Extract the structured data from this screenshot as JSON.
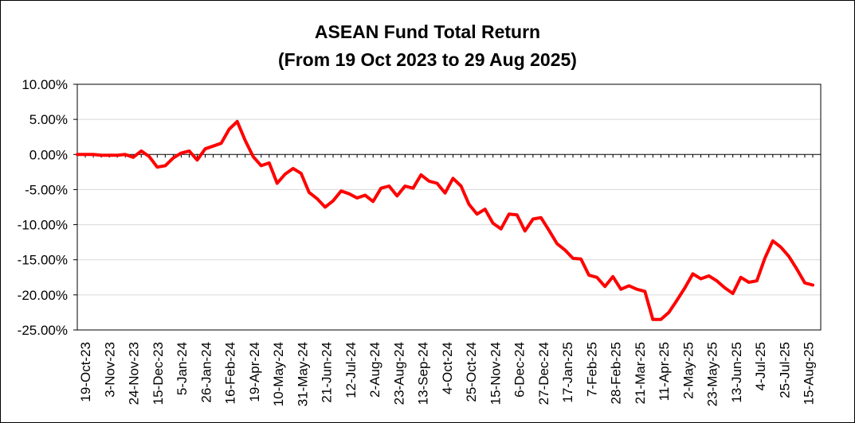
{
  "chart_data": {
    "type": "line",
    "title": "ASEAN Fund Total Return",
    "subtitle": "(From 19 Oct 2023 to 29 Aug 2025)",
    "xlabel": "",
    "ylabel": "",
    "ylim": [
      -25,
      10
    ],
    "y_ticks": [
      10,
      5,
      0,
      -5,
      -10,
      -15,
      -20,
      -25
    ],
    "y_tick_labels": [
      "10.00%",
      "5.00%",
      "0.00%",
      "-5.00%",
      "-10.00%",
      "-15.00%",
      "-20.00%",
      "-25.00%"
    ],
    "x_tick_labels": [
      "19-Oct-23",
      "3-Nov-23",
      "24-Nov-23",
      "15-Dec-23",
      "5-Jan-24",
      "26-Jan-24",
      "16-Feb-24",
      "19-Apr-24",
      "10-May-24",
      "31-May-24",
      "21-Jun-24",
      "12-Jul-24",
      "2-Aug-24",
      "23-Aug-24",
      "13-Sep-24",
      "4-Oct-24",
      "25-Oct-24",
      "15-Nov-24",
      "6-Dec-24",
      "27-Dec-24",
      "17-Jan-25",
      "7-Feb-25",
      "28-Feb-25",
      "21-Mar-25",
      "11-Apr-25",
      "2-May-25",
      "23-May-25",
      "13-Jun-25",
      "4-Jul-25",
      "25-Jul-25",
      "15-Aug-25"
    ],
    "grid": true,
    "line_color": "#ff0000",
    "series": [
      {
        "values": [
          0.0,
          0.0,
          0.0,
          -0.1,
          -0.1,
          -0.1,
          0.0,
          -0.4,
          0.5,
          -0.3,
          -1.8,
          -1.6,
          -0.5,
          0.2,
          0.5,
          -0.8,
          0.8,
          1.2,
          1.6,
          3.6,
          4.7,
          2.0,
          -0.3,
          -1.6,
          -1.2,
          -4.1,
          -2.8,
          -2.0,
          -2.7,
          -5.4,
          -6.3,
          -7.5,
          -6.6,
          -5.2,
          -5.6,
          -6.2,
          -5.8,
          -6.7,
          -4.8,
          -4.5,
          -5.9,
          -4.5,
          -4.8,
          -2.9,
          -3.8,
          -4.1,
          -5.5,
          -3.4,
          -4.5,
          -7.1,
          -8.5,
          -7.8,
          -9.8,
          -10.6,
          -8.5,
          -8.6,
          -10.9,
          -9.2,
          -9.0,
          -10.8,
          -12.7,
          -13.6,
          -14.8,
          -14.9,
          -17.2,
          -17.5,
          -18.8,
          -17.4,
          -19.2,
          -18.7,
          -19.2,
          -19.5,
          -23.5,
          -23.5,
          -22.5,
          -20.8,
          -19.0,
          -17.0,
          -17.7,
          -17.3,
          -18.0,
          -19.0,
          -19.8,
          -17.5,
          -18.2,
          -18.0,
          -14.8,
          -12.3,
          -13.2,
          -14.5,
          -16.3,
          -18.3,
          -18.6
        ]
      }
    ]
  }
}
